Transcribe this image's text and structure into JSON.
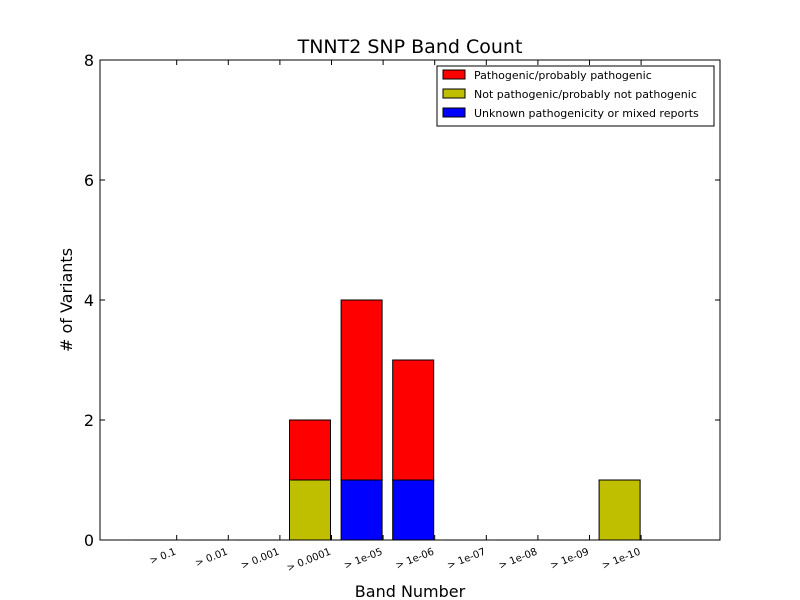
{
  "chart_data": {
    "type": "bar",
    "stacked": true,
    "title": "TNNT2 SNP Band Count",
    "xlabel": "Band Number",
    "ylabel": "# of Variants",
    "ylim": [
      0,
      8
    ],
    "yticks": [
      "0",
      "2",
      "4",
      "6",
      "8"
    ],
    "categories": [
      "> 0.1",
      "> 0.01",
      "> 0.001",
      "> 0.0001",
      "> 1e-05",
      "> 1e-06",
      "> 1e-07",
      "> 1e-08",
      "> 1e-09",
      "> 1e-10"
    ],
    "series": [
      {
        "name": "Unknown pathogenicity or mixed reports",
        "color": "#0000ff",
        "values": [
          0,
          0,
          0,
          0,
          1,
          1,
          0,
          0,
          0,
          0
        ]
      },
      {
        "name": "Not pathogenic/probably not pathogenic",
        "color": "#bfbf00",
        "values": [
          0,
          0,
          0,
          1,
          0,
          0,
          0,
          0,
          0,
          1
        ]
      },
      {
        "name": "Pathogenic/probably pathogenic",
        "color": "#ff0000",
        "values": [
          0,
          0,
          0,
          1,
          3,
          2,
          0,
          0,
          0,
          0
        ]
      }
    ],
    "legend": {
      "position": "top-right",
      "order": [
        "Pathogenic/probably pathogenic",
        "Not pathogenic/probably not pathogenic",
        "Unknown pathogenicity or mixed reports"
      ]
    },
    "grid": false
  }
}
